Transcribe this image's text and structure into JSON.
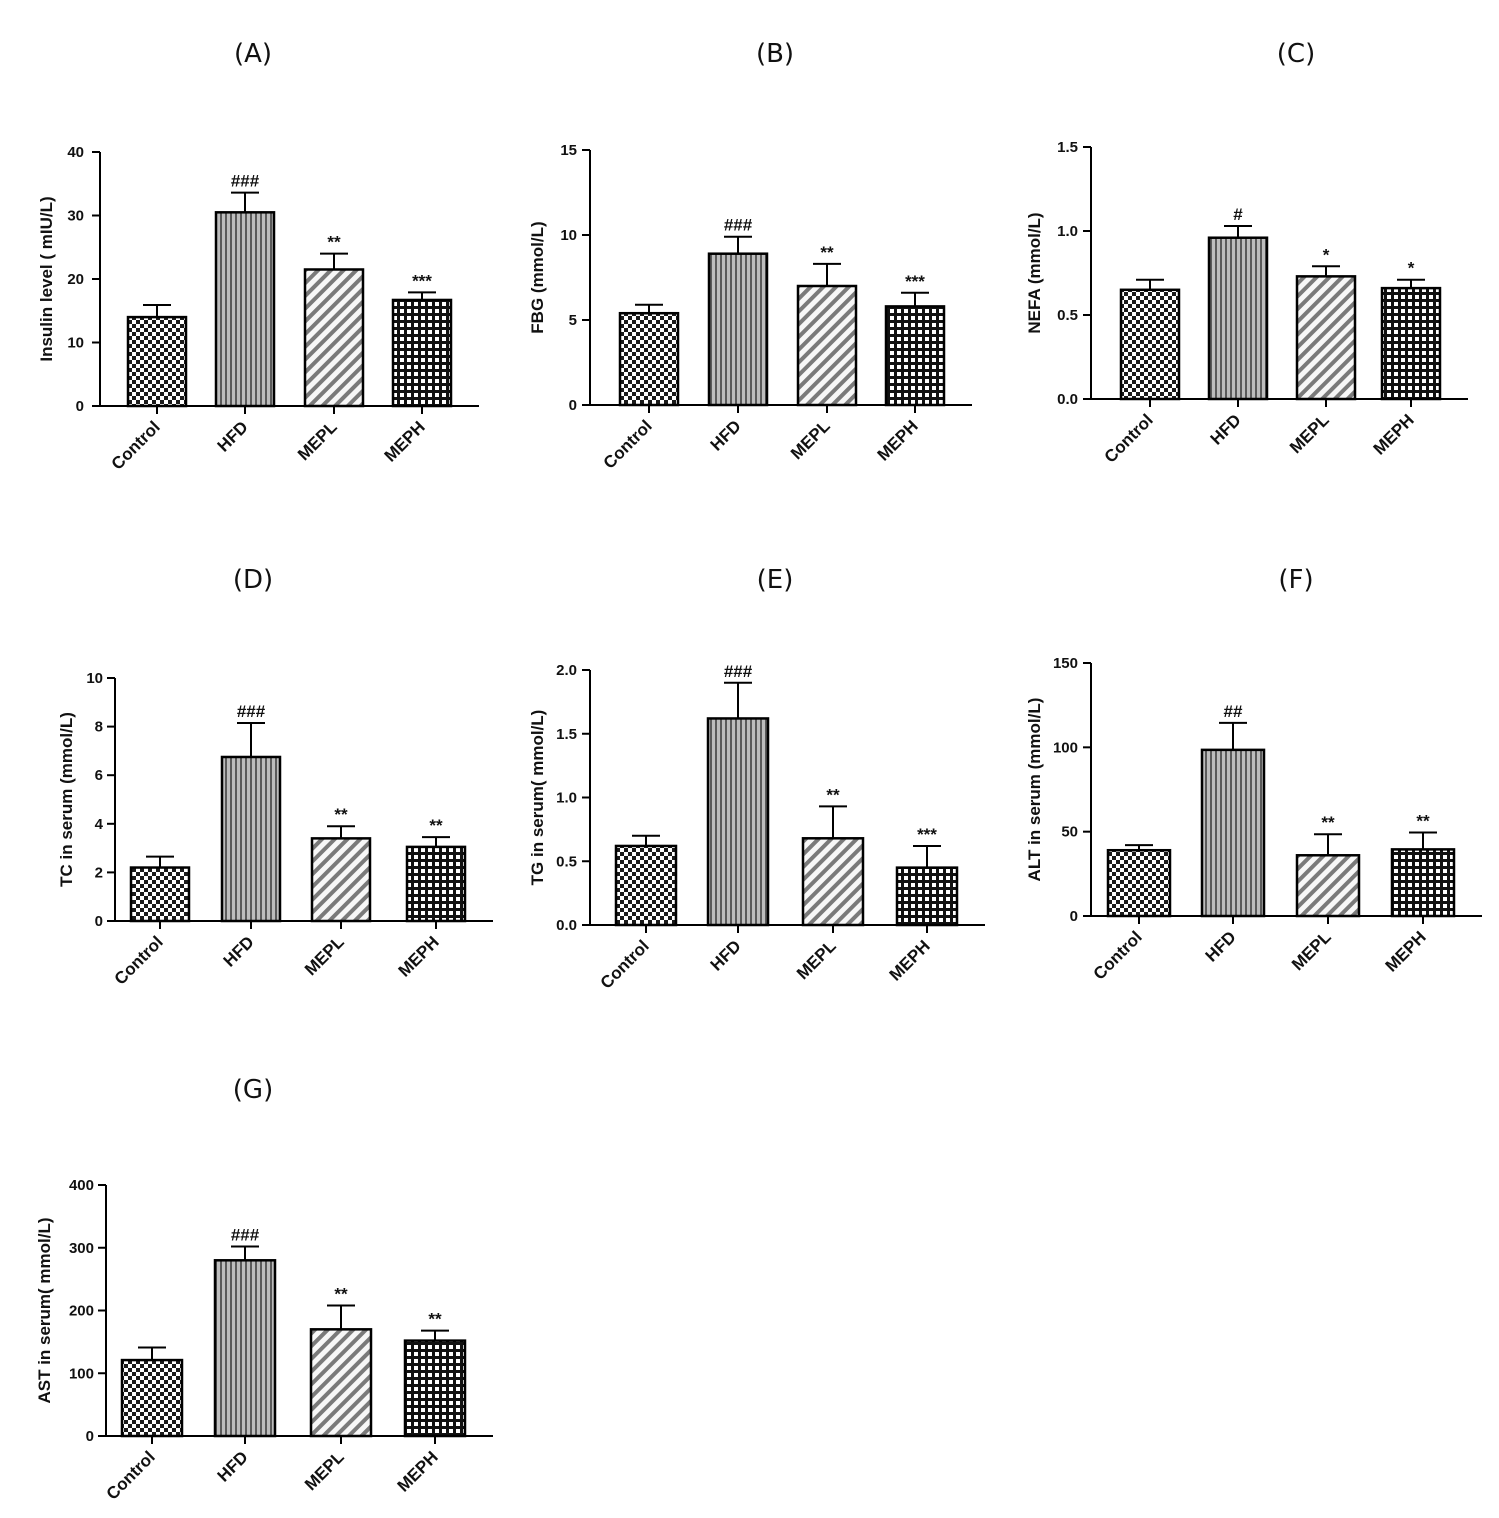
{
  "chart_data": [
    {
      "type": "bar",
      "title": "(A)",
      "ylabel": "Insulin level ( mIU/L)",
      "categories": [
        "Control",
        "HFD",
        "MEPL",
        "MEPH"
      ],
      "values": [
        14,
        30.5,
        21.5,
        16.7
      ],
      "errors": [
        1.9,
        3.1,
        2.5,
        1.2
      ],
      "annotations": [
        "",
        "###",
        "**",
        "***"
      ],
      "ylim": [
        0,
        40
      ],
      "yticks": [
        "0",
        "10",
        "20",
        "30",
        "40"
      ]
    },
    {
      "type": "bar",
      "title": "(B)",
      "ylabel": "FBG (mmol/L)",
      "categories": [
        "Control",
        "HFD",
        "MEPL",
        "MEPH"
      ],
      "values": [
        5.4,
        8.9,
        7.0,
        5.8
      ],
      "errors": [
        0.5,
        1.0,
        1.3,
        0.8
      ],
      "annotations": [
        "",
        "###",
        "**",
        "***"
      ],
      "ylim": [
        0,
        15
      ],
      "yticks": [
        "0",
        "5",
        "10",
        "15"
      ]
    },
    {
      "type": "bar",
      "title": "(C)",
      "ylabel": "NEFA (mmol/L)",
      "categories": [
        "Control",
        "HFD",
        "MEPL",
        "MEPH"
      ],
      "values": [
        0.65,
        0.96,
        0.73,
        0.66
      ],
      "errors": [
        0.06,
        0.07,
        0.06,
        0.05
      ],
      "annotations": [
        "",
        "#",
        "*",
        "*"
      ],
      "ylim": [
        0,
        1.5
      ],
      "yticks": [
        "0.0",
        "0.5",
        "1.0",
        "1.5"
      ]
    },
    {
      "type": "bar",
      "title": "(D)",
      "ylabel": "TC in serum (mmol/L)",
      "categories": [
        "Control",
        "HFD",
        "MEPL",
        "MEPH"
      ],
      "values": [
        2.2,
        6.75,
        3.4,
        3.05
      ],
      "errors": [
        0.45,
        1.4,
        0.5,
        0.4
      ],
      "annotations": [
        "",
        "###",
        "**",
        "**"
      ],
      "ylim": [
        0,
        10
      ],
      "yticks": [
        "0",
        "2",
        "4",
        "6",
        "8",
        "10"
      ]
    },
    {
      "type": "bar",
      "title": "(E)",
      "ylabel": "TG in serum( mmol/L)",
      "categories": [
        "Control",
        "HFD",
        "MEPL",
        "MEPH"
      ],
      "values": [
        0.62,
        1.62,
        0.68,
        0.45
      ],
      "errors": [
        0.08,
        0.28,
        0.25,
        0.17
      ],
      "annotations": [
        "",
        "###",
        "**",
        "***"
      ],
      "ylim": [
        0,
        2.0
      ],
      "yticks": [
        "0.0",
        "0.5",
        "1.0",
        "1.5",
        "2.0"
      ]
    },
    {
      "type": "bar",
      "title": "(F)",
      "ylabel": "ALT in serum (mmol/L)",
      "categories": [
        "Control",
        "HFD",
        "MEPL",
        "MEPH"
      ],
      "values": [
        39,
        98.5,
        36,
        39.5
      ],
      "errors": [
        3,
        16,
        12.5,
        10
      ],
      "annotations": [
        "",
        "##",
        "**",
        "**"
      ],
      "ylim": [
        0,
        150
      ],
      "yticks": [
        "0",
        "50",
        "100",
        "150"
      ]
    },
    {
      "type": "bar",
      "title": "(G)",
      "ylabel": "AST in serum( mmol/L)",
      "categories": [
        "Control",
        "HFD",
        "MEPL",
        "MEPH"
      ],
      "values": [
        121,
        280,
        170,
        152
      ],
      "errors": [
        20,
        22,
        38,
        16
      ],
      "annotations": [
        "",
        "###",
        "**",
        "**"
      ],
      "ylim": [
        0,
        400
      ],
      "yticks": [
        "0",
        "100",
        "200",
        "300",
        "400"
      ]
    }
  ]
}
